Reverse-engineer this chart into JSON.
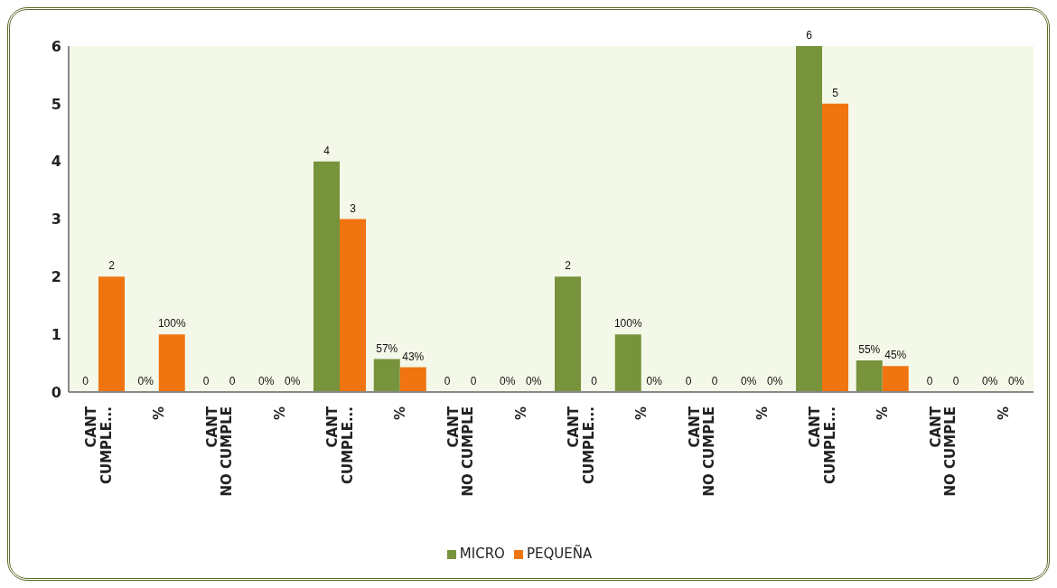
{
  "chart_data": {
    "type": "bar",
    "categories": [
      "CANT CUMPLE...",
      "%",
      "CANT NO CUMPLE",
      "%",
      "CANT CUMPLE...",
      "%",
      "CANT NO CUMPLE",
      "%",
      "CANT CUMPLE...",
      "%",
      "CANT NO CUMPLE",
      "%",
      "CANT CUMPLE...",
      "%",
      "CANT NO CUMPLE",
      "%"
    ],
    "series": [
      {
        "name": "MICRO",
        "color": "#77933c",
        "values": [
          0,
          0,
          0,
          0,
          4,
          0.57,
          0,
          0,
          2,
          1,
          0,
          0,
          6,
          0.55,
          0,
          0
        ],
        "value_labels": [
          "0",
          "0%",
          "0",
          "0%",
          "4",
          "57%",
          "0",
          "0%",
          "2",
          "100%",
          "0",
          "0%",
          "6",
          "55%",
          "0",
          "0%"
        ]
      },
      {
        "name": "PEQUEÑA",
        "color": "#f07510",
        "values": [
          2,
          1,
          0,
          0,
          3,
          0.43,
          0,
          0,
          0,
          0,
          0,
          0,
          5,
          0.45,
          0,
          0
        ],
        "value_labels": [
          "2",
          "100%",
          "0",
          "0%",
          "3",
          "43%",
          "0",
          "0%",
          "0",
          "0%",
          "0",
          "0%",
          "5",
          "45%",
          "0",
          "0%"
        ]
      }
    ],
    "ylim": [
      0,
      6
    ],
    "yticks": [
      0,
      1,
      2,
      3,
      4,
      5,
      6
    ],
    "legend": "bottom"
  }
}
